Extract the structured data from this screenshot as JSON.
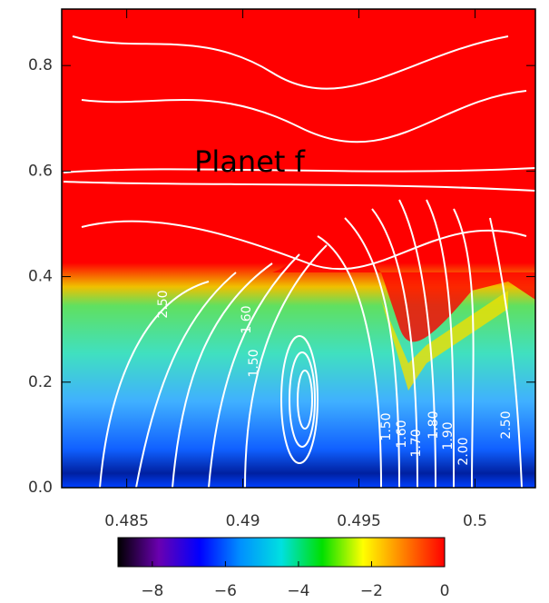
{
  "chart_data": {
    "type": "heatmap",
    "annotation": "Planet f",
    "xlim": [
      0.4822,
      0.5026
    ],
    "xticks": [
      0.485,
      0.49,
      0.495,
      0.5
    ],
    "ylim": [
      0,
      0.907
    ],
    "yticks": [
      {
        "value": 0,
        "label": "0.0"
      },
      0.2,
      0.4,
      0.6,
      0.8
    ],
    "clim": [
      -8.94,
      0
    ],
    "cticks": [
      {
        "value": -8,
        "label": "−8"
      },
      {
        "value": -6,
        "label": "−6"
      },
      {
        "value": -4,
        "label": "−4"
      },
      {
        "value": -2,
        "label": "−2"
      },
      0
    ],
    "colorscale": [
      "#000000",
      "#6a00b0",
      "#0000ff",
      "#0090ff",
      "#00e0e0",
      "#00e000",
      "#ffff00",
      "#ff8000",
      "#ff0000"
    ],
    "contour_labels": [
      "2.50",
      "1.60",
      "1.50",
      "1.50",
      "1.60",
      "1.70",
      "1.80",
      "1.90",
      "2.00",
      "2.50"
    ]
  }
}
